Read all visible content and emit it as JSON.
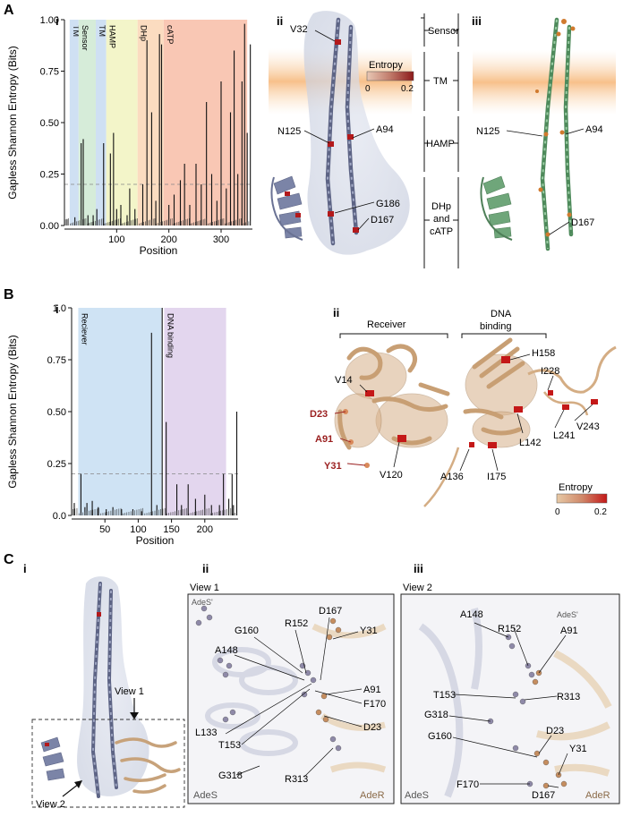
{
  "panels": {
    "A": "A",
    "B": "B",
    "C": "C",
    "sub_i": "i",
    "sub_ii": "ii",
    "sub_iii": "iii"
  },
  "chartA": {
    "ylabel": "Gapless Shannon Entropy (Bits)",
    "xlabel": "Position",
    "xticks": [
      "100",
      "200",
      "300"
    ],
    "yticks": [
      "0.00",
      "0.25",
      "0.50",
      "0.75",
      "1.00"
    ],
    "regions": [
      "TM",
      "Sensor",
      "TM",
      "HAMP",
      "DHp",
      "cATP"
    ]
  },
  "chartB": {
    "ylabel": "Gapless Shannon Entropy (Bits)",
    "xlabel": "Position",
    "xticks": [
      "50",
      "100",
      "150",
      "200"
    ],
    "yticks": [
      "0.0",
      "0.25",
      "0.50",
      "0.75",
      "1.0"
    ],
    "regions": [
      "Reciever",
      "DNA binding"
    ]
  },
  "chart_data": [
    {
      "type": "bar",
      "xlabel": "Position",
      "ylabel": "Gapless Shannon Entropy (Bits)",
      "xlim": [
        0,
        360
      ],
      "ylim": [
        0,
        1.0
      ],
      "threshold": 0.2,
      "regions": [
        {
          "name": "TM",
          "start": 10,
          "end": 27,
          "color": "#cfe0f3"
        },
        {
          "name": "Sensor",
          "start": 27,
          "end": 60,
          "color": "#d6ecd9"
        },
        {
          "name": "TM",
          "start": 60,
          "end": 80,
          "color": "#cfe0f3"
        },
        {
          "name": "HAMP",
          "start": 80,
          "end": 140,
          "color": "#f3f5c9"
        },
        {
          "name": "DHp",
          "start": 140,
          "end": 190,
          "color": "#fbdcc0"
        },
        {
          "name": "cATP",
          "start": 190,
          "end": 350,
          "color": "#f9c7b4"
        }
      ],
      "x": [
        5,
        20,
        32,
        36,
        45,
        55,
        62,
        75,
        88,
        94,
        100,
        108,
        120,
        125,
        135,
        150,
        158,
        167,
        175,
        182,
        186,
        200,
        210,
        222,
        230,
        240,
        252,
        262,
        272,
        282,
        292,
        300,
        310,
        318,
        325,
        332,
        340,
        345,
        350,
        356
      ],
      "values": [
        0.03,
        0.04,
        0.4,
        0.42,
        0.05,
        0.05,
        0.08,
        0.4,
        0.35,
        0.45,
        0.08,
        0.1,
        0.05,
        0.18,
        0.08,
        0.2,
        0.9,
        0.55,
        0.12,
        0.93,
        0.88,
        0.1,
        0.15,
        0.22,
        0.3,
        0.1,
        0.3,
        0.2,
        0.6,
        0.25,
        0.12,
        0.7,
        0.18,
        0.55,
        0.85,
        0.25,
        0.7,
        0.98,
        0.45,
        0.88
      ]
    },
    {
      "type": "bar",
      "xlabel": "Position",
      "ylabel": "Gapless Shannon Entropy (Bits)",
      "xlim": [
        0,
        250
      ],
      "ylim": [
        0,
        1.0
      ],
      "threshold": 0.2,
      "regions": [
        {
          "name": "Reciever",
          "start": 10,
          "end": 135,
          "color": "#cfe3f4"
        },
        {
          "name": "DNA binding",
          "start": 139,
          "end": 232,
          "color": "#e3d6ee"
        }
      ],
      "x": [
        4,
        14,
        20,
        23,
        31,
        40,
        52,
        62,
        75,
        92,
        105,
        120,
        128,
        136,
        142,
        158,
        165,
        175,
        186,
        200,
        210,
        222,
        228,
        236,
        241,
        243,
        248
      ],
      "values": [
        0.06,
        0.2,
        0.04,
        0.06,
        0.07,
        0.04,
        0.03,
        0.04,
        0.03,
        0.03,
        0.02,
        0.88,
        0.05,
        1.0,
        0.45,
        0.15,
        0.05,
        0.15,
        0.08,
        0.1,
        0.05,
        0.05,
        0.2,
        0.08,
        0.2,
        0.05,
        0.5
      ]
    }
  ],
  "structA2": {
    "labels": {
      "v32": "V32",
      "n125": "N125",
      "a94": "A94",
      "g186": "G186",
      "d167": "D167"
    },
    "legend_title": "Entropy",
    "legend_min": "0",
    "legend_max": "0.2"
  },
  "domains": {
    "sensor": "Sensor",
    "tm": "TM",
    "hamp": "HAMP",
    "dhp1": "DHp",
    "dhp2": "and",
    "dhp3": "cATP"
  },
  "structA3": {
    "labels": {
      "n125": "N125",
      "a94": "A94",
      "d167": "D167"
    }
  },
  "structB2": {
    "receiver": "Receiver",
    "dna1": "DNA",
    "dna2": "binding",
    "labels": {
      "h158": "H158",
      "v14": "V14",
      "i228": "I228",
      "v243": "V243",
      "l241": "L241",
      "d23": "D23",
      "a91": "A91",
      "y31": "Y31",
      "v120": "V120",
      "a136": "A136",
      "i175": "I175",
      "l142": "L142"
    },
    "legend_title": "Entropy",
    "legend_min": "0",
    "legend_max": "0.2"
  },
  "structC1": {
    "view1": "View 1",
    "view2": "View 2"
  },
  "view1": {
    "title": "View 1",
    "labels": {
      "ades_prime": "AdeS'",
      "g160": "G160",
      "r152": "R152",
      "d167": "D167",
      "y31": "Y31",
      "a148": "A148",
      "a91": "A91",
      "f170": "F170",
      "l133": "L133",
      "t153": "T153",
      "d23": "D23",
      "ades": "AdeS",
      "g318": "G318",
      "r313": "R313",
      "ader": "AdeR"
    }
  },
  "view2": {
    "title": "View 2",
    "labels": {
      "a148": "A148",
      "ades_prime": "AdeS'",
      "r152": "R152",
      "a91": "A91",
      "t153": "T153",
      "r313": "R313",
      "g318": "G318",
      "d23": "D23",
      "g160": "G160",
      "y31": "Y31",
      "f170": "F170",
      "d167": "D167",
      "ades": "AdeS",
      "ader": "AdeR"
    }
  },
  "colors": {
    "ades": "#7e86a8",
    "ader": "#d8b48e",
    "green": "#5f9e6b",
    "red": "#c01b1b",
    "membrane": "#f7c48c"
  }
}
